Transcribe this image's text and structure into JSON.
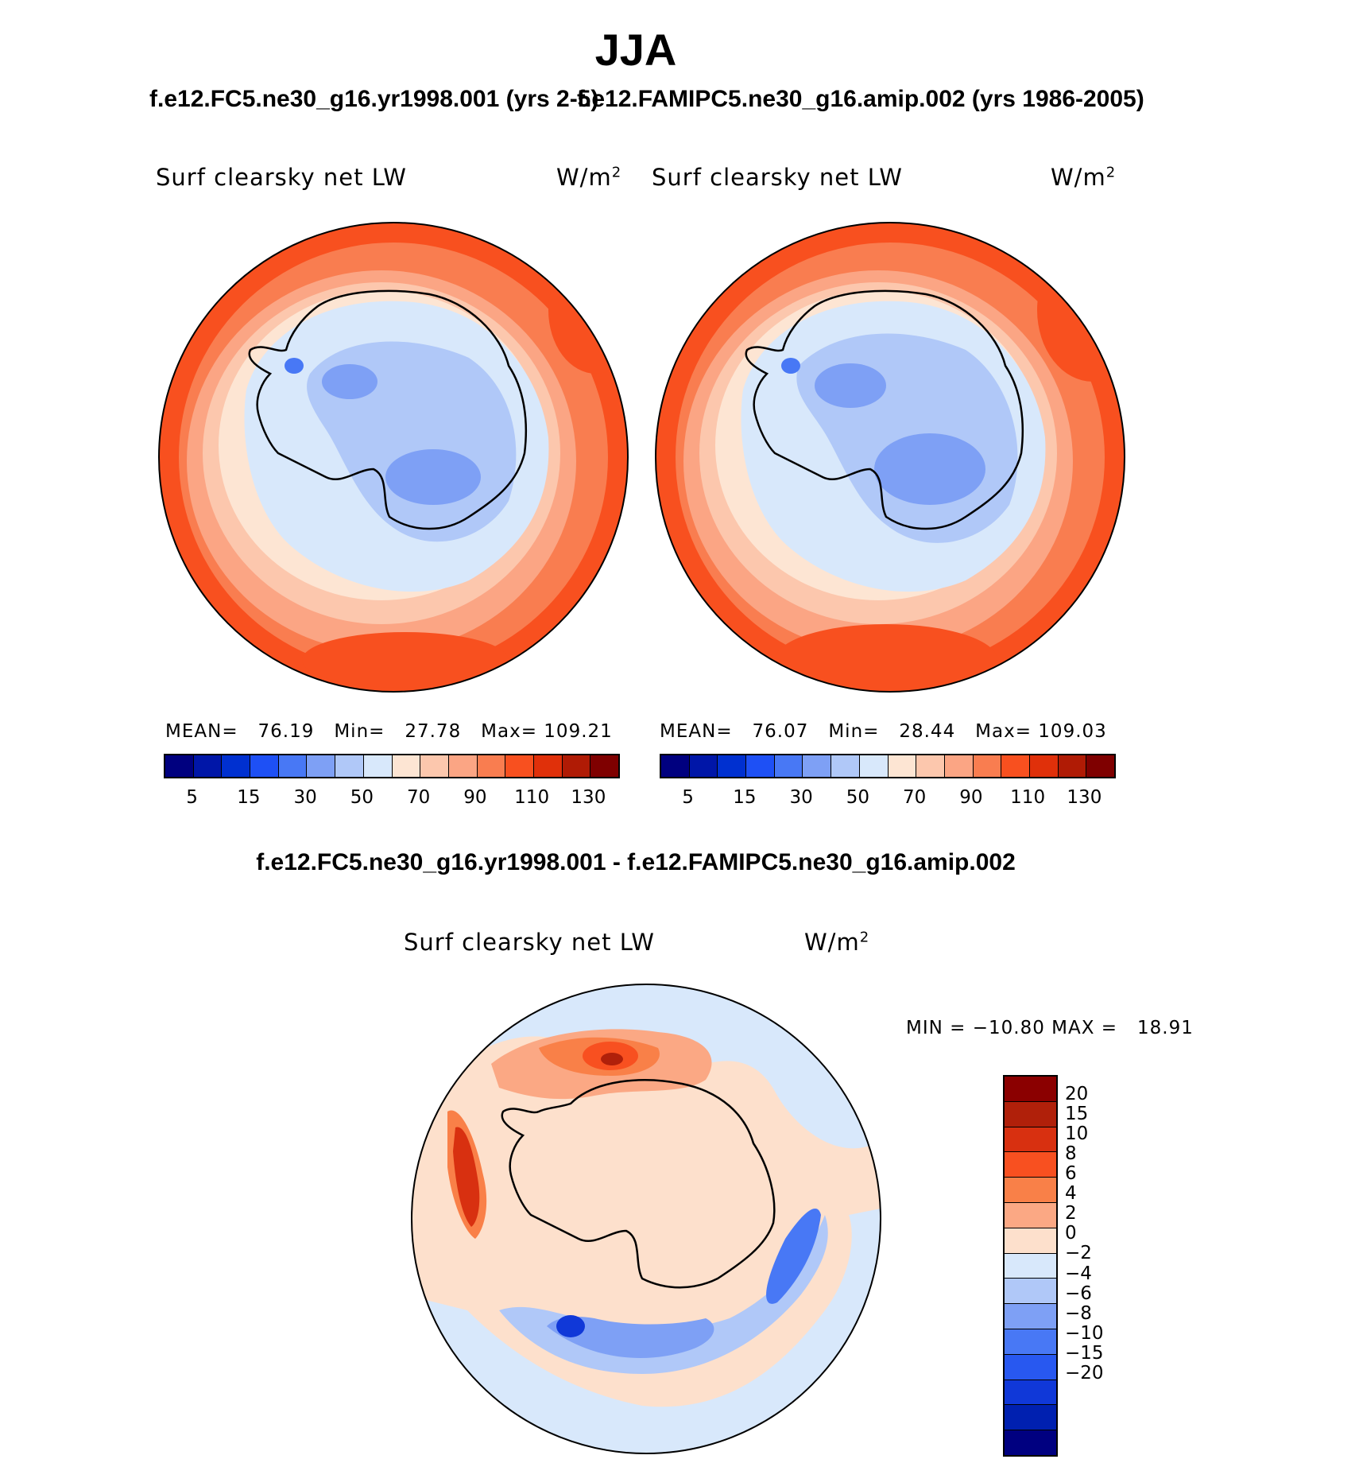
{
  "title": "JJA",
  "panels": [
    {
      "case": "f.e12.FC5.ne30_g16.yr1998.001 (yrs 2-5)",
      "variable": "Surf clearsky net LW",
      "units_base": "W/m",
      "units_exp": "2",
      "stats": {
        "mean_label": "MEAN=",
        "mean": "76.19",
        "min_label": "Min=",
        "min": "27.78",
        "max_label": "Max=",
        "max": "109.21"
      }
    },
    {
      "case": "f.e12.FAMIPC5.ne30_g16.amip.002 (yrs 1986-2005)",
      "variable": "Surf clearsky net LW",
      "units_base": "W/m",
      "units_exp": "2",
      "stats": {
        "mean_label": "MEAN=",
        "mean": "76.07",
        "min_label": "Min=",
        "min": "28.44",
        "max_label": "Max=",
        "max": "109.03"
      }
    }
  ],
  "colorbar": {
    "colors": [
      "#00007f",
      "#0016a8",
      "#0030d0",
      "#1e50f5",
      "#4878f5",
      "#7ea0f5",
      "#b0c8f8",
      "#d8e8fb",
      "#fde5d3",
      "#fcc7ad",
      "#fba584",
      "#f97d50",
      "#f8501f",
      "#e0300a",
      "#b01b05",
      "#7f0000"
    ],
    "labels": [
      "5",
      "15",
      "30",
      "50",
      "70",
      "90",
      "110",
      "130"
    ]
  },
  "difference": {
    "case": "f.e12.FC5.ne30_g16.yr1998.001 - f.e12.FAMIPC5.ne30_g16.amip.002",
    "variable": "Surf clearsky net LW",
    "units_base": "W/m",
    "units_exp": "2",
    "min_max": "MIN = −10.80 MAX =   18.91",
    "colorbar": {
      "colors": [
        "#8b0000",
        "#b0200a",
        "#d83010",
        "#f85020",
        "#f98048",
        "#fba884",
        "#fde0cc",
        "#d8e8fb",
        "#b0c8f8",
        "#7ea0f5",
        "#4878f5",
        "#2858f0",
        "#1038d8",
        "#0020b0",
        "#000080"
      ],
      "labels": [
        "20",
        "15",
        "10",
        "8",
        "6",
        "4",
        "2",
        "0",
        "−2",
        "−4",
        "−6",
        "−8",
        "−10",
        "−15",
        "−20"
      ]
    }
  }
}
